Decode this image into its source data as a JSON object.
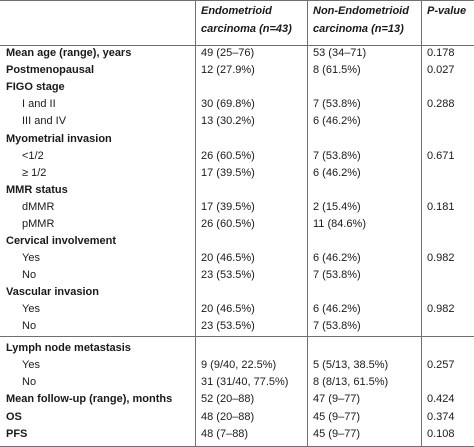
{
  "header": {
    "col0": "",
    "col1_line1": "Endometrioid",
    "col1_line2": "carcinoma (n=43)",
    "col2_line1": "Non-Endometrioid",
    "col2_line2": "carcinoma (n=13)",
    "col3": "P-value"
  },
  "rows": [
    {
      "label": "Mean age (range), years",
      "c1": "49 (25–76)",
      "c2": "53 (34–71)",
      "p": "0.178"
    },
    {
      "label": "Postmenopausal",
      "c1": "12 (27.9%)",
      "c2": "8 (61.5%)",
      "p": "0.027"
    },
    {
      "label": "FIGO stage",
      "c1": "",
      "c2": "",
      "p": ""
    },
    {
      "label": "I and II",
      "c1": "30 (69.8%)",
      "c2": "7 (53.8%)",
      "p": "0.288"
    },
    {
      "label": "III and IV",
      "c1": "13 (30.2%)",
      "c2": "6 (46.2%)",
      "p": ""
    },
    {
      "label": "Myometrial invasion",
      "c1": "",
      "c2": "",
      "p": ""
    },
    {
      "label": "<1/2",
      "c1": "26 (60.5%)",
      "c2": "7 (53.8%)",
      "p": "0.671"
    },
    {
      "label": "≥ 1/2",
      "c1": "17 (39.5%)",
      "c2": "6 (46.2%)",
      "p": ""
    },
    {
      "label": "MMR status",
      "c1": "",
      "c2": "",
      "p": ""
    },
    {
      "label": "dMMR",
      "c1": "17 (39.5%)",
      "c2": "2 (15.4%)",
      "p": "0.181"
    },
    {
      "label": "pMMR",
      "c1": "26 (60.5%)",
      "c2": "11 (84.6%)",
      "p": ""
    },
    {
      "label": "Cervical involvement",
      "c1": "",
      "c2": "",
      "p": ""
    },
    {
      "label": "Yes",
      "c1": "20 (46.5%)",
      "c2": "6 (46.2%)",
      "p": "0.982"
    },
    {
      "label": "No",
      "c1": "23 (53.5%)",
      "c2": "7 (53.8%)",
      "p": ""
    },
    {
      "label": "Vascular invasion",
      "c1": "",
      "c2": "",
      "p": ""
    },
    {
      "label": "Yes",
      "c1": "20 (46.5%)",
      "c2": "6 (46.2%)",
      "p": "0.982"
    },
    {
      "label": "No",
      "c1": "23 (53.5%)",
      "c2": "7 (53.8%)",
      "p": ""
    },
    {
      "label": "Lymph node metastasis",
      "c1": "",
      "c2": "",
      "p": ""
    },
    {
      "label": "Yes",
      "c1": "9 (9/40, 22.5%)",
      "c2": "5 (5/13, 38.5%)",
      "p": "0.257"
    },
    {
      "label": "No",
      "c1": "31 (31/40, 77.5%)",
      "c2": "8 (8/13, 61.5%)",
      "p": ""
    },
    {
      "label": "Mean follow-up (range), months",
      "c1": "52 (20–88)",
      "c2": "47 (9–77)",
      "p": "0.424"
    },
    {
      "label": "OS",
      "c1": "48 (20–88)",
      "c2": "45 (9–77)",
      "p": "0.374"
    },
    {
      "label": "PFS",
      "c1": "48 (7–88)",
      "c2": "45 (9–77)",
      "p": "0.108"
    }
  ]
}
